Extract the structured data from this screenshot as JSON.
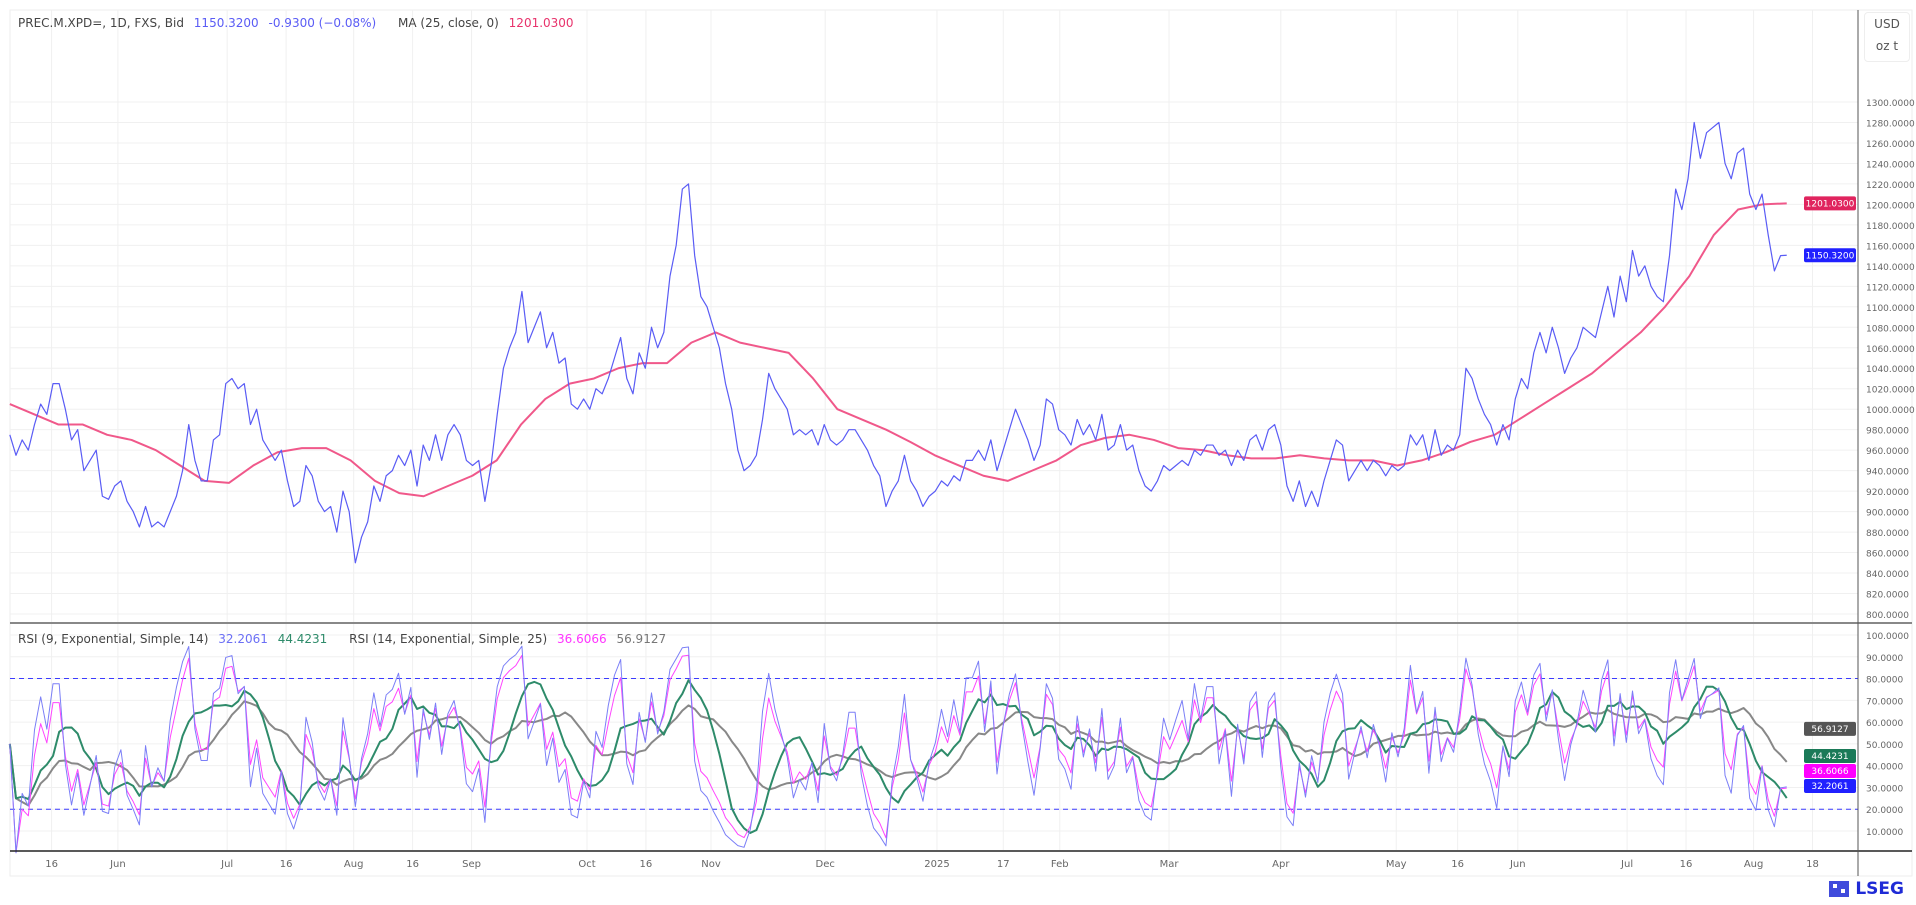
{
  "header": {
    "symbol": "PREC.M.XPD=, 1D, FXS, Bid",
    "last": "1150.3200",
    "change": "-0.9300 (−0.08%)",
    "ma_label": "MA (25, close, 0)",
    "ma_value": "1201.0300"
  },
  "rsi_legend": {
    "rsi1_label": "RSI (9, Exponential, Simple, 14)",
    "rsi1_value": "32.2061",
    "rsi1_ma_value": "44.4231",
    "rsi2_label": "RSI (14, Exponential, Simple, 25)",
    "rsi2_value": "36.6066",
    "rsi2_ma_value": "56.9127"
  },
  "scale": {
    "currency": "USD",
    "unit": "oz t"
  },
  "logo": {
    "text": "LSEG"
  },
  "colors": {
    "price": "#5a5cf5",
    "ma": "#f0588a",
    "rsi1": "#7b7ff7",
    "rsi2": "#ff44ff",
    "rsi1_ma": "#2e8b6a",
    "rsi2_ma": "#888888",
    "band": "#3b3bff"
  },
  "chart_data": [
    {
      "type": "line",
      "title": "PREC.M.XPD=, 1D, FXS, Bid",
      "ylim": [
        790,
        1310
      ],
      "yticks": [
        "800.0000",
        "820.0000",
        "840.0000",
        "860.0000",
        "880.0000",
        "900.0000",
        "920.0000",
        "940.0000",
        "960.0000",
        "980.0000",
        "1000.0000",
        "1020.0000",
        "1040.0000",
        "1060.0000",
        "1080.0000",
        "1100.0000",
        "1120.0000",
        "1140.0000",
        "1160.0000",
        "1180.0000",
        "1200.0000",
        "1220.0000",
        "1240.0000",
        "1260.0000",
        "1280.0000",
        "1300.0000"
      ],
      "xticks": [
        "16",
        "Jun",
        "Jul",
        "16",
        "Aug",
        "16",
        "Sep",
        "Oct",
        "16",
        "Nov",
        "Dec",
        "2025",
        "17",
        "Feb",
        "Mar",
        "Apr",
        "May",
        "16",
        "Jun",
        "Jul",
        "16",
        "Aug",
        "18"
      ],
      "series": [
        {
          "name": "PREC.M.XPD=",
          "values": [
            975,
            955,
            970,
            960,
            985,
            1005,
            995,
            1025,
            1025,
            1000,
            970,
            980,
            940,
            950,
            960,
            915,
            912,
            925,
            930,
            910,
            900,
            885,
            905,
            885,
            890,
            885,
            900,
            915,
            940,
            985,
            950,
            930,
            930,
            970,
            975,
            1025,
            1030,
            1020,
            1025,
            985,
            1000,
            970,
            960,
            950,
            960,
            930,
            905,
            910,
            945,
            935,
            910,
            900,
            905,
            880,
            920,
            900,
            850,
            875,
            890,
            925,
            910,
            935,
            940,
            955,
            945,
            960,
            925,
            965,
            950,
            975,
            950,
            975,
            985,
            975,
            950,
            945,
            950,
            910,
            945,
            995,
            1040,
            1060,
            1075,
            1115,
            1065,
            1080,
            1095,
            1060,
            1075,
            1045,
            1050,
            1005,
            1000,
            1010,
            1000,
            1020,
            1015,
            1030,
            1050,
            1070,
            1030,
            1015,
            1055,
            1040,
            1080,
            1060,
            1075,
            1130,
            1160,
            1215,
            1220,
            1150,
            1110,
            1100,
            1080,
            1060,
            1025,
            1000,
            960,
            940,
            945,
            955,
            990,
            1035,
            1020,
            1010,
            1000,
            975,
            980,
            975,
            980,
            965,
            985,
            970,
            965,
            970,
            980,
            980,
            970,
            960,
            945,
            935,
            905,
            920,
            930,
            955,
            930,
            920,
            905,
            915,
            920,
            930,
            925,
            935,
            930,
            950,
            950,
            960,
            950,
            970,
            940,
            960,
            980,
            1000,
            985,
            970,
            950,
            965,
            1010,
            1005,
            980,
            975,
            965,
            990,
            975,
            985,
            970,
            995,
            960,
            965,
            985,
            960,
            965,
            940,
            925,
            920,
            930,
            945,
            940,
            945,
            950,
            945,
            960,
            955,
            965,
            965,
            955,
            960,
            945,
            960,
            950,
            970,
            975,
            960,
            980,
            985,
            965,
            925,
            910,
            930,
            905,
            920,
            905,
            930,
            950,
            970,
            965,
            930,
            940,
            950,
            940,
            950,
            945,
            935,
            945,
            940,
            945,
            975,
            965,
            975,
            950,
            980,
            955,
            965,
            960,
            975,
            1040,
            1030,
            1010,
            995,
            985,
            965,
            985,
            970,
            1010,
            1030,
            1020,
            1055,
            1075,
            1055,
            1080,
            1060,
            1035,
            1050,
            1060,
            1080,
            1075,
            1070,
            1095,
            1120,
            1090,
            1130,
            1105,
            1155,
            1130,
            1140,
            1120,
            1110,
            1105,
            1150,
            1215,
            1195,
            1225,
            1280,
            1245,
            1270,
            1275,
            1280,
            1240,
            1225,
            1250,
            1255,
            1210,
            1195,
            1210,
            1170,
            1135,
            1150,
            1150.32
          ]
        },
        {
          "name": "MA (25, close, 0)",
          "values": [
            1005,
            995,
            985,
            985,
            975,
            970,
            960,
            945,
            930,
            928,
            945,
            958,
            962,
            962,
            950,
            930,
            918,
            915,
            925,
            935,
            950,
            985,
            1010,
            1025,
            1030,
            1040,
            1045,
            1045,
            1065,
            1075,
            1065,
            1060,
            1055,
            1030,
            1000,
            990,
            980,
            968,
            955,
            945,
            935,
            930,
            940,
            950,
            965,
            972,
            975,
            970,
            962,
            960,
            955,
            952,
            952,
            955,
            952,
            950,
            950,
            945,
            950,
            958,
            968,
            975,
            990,
            1005,
            1020,
            1035,
            1055,
            1075,
            1100,
            1130,
            1170,
            1195,
            1200,
            1201.03
          ]
        }
      ]
    },
    {
      "type": "line",
      "title": "RSI",
      "ylim": [
        0,
        105
      ],
      "yticks": [
        "10.0000",
        "20.0000",
        "30.0000",
        "40.0000",
        "50.0000",
        "60.0000",
        "70.0000",
        "80.0000",
        "90.0000",
        "100.0000"
      ],
      "bands": [
        20,
        80
      ],
      "series": [
        {
          "name": "RSI (9, Exponential, Simple, 14)",
          "last": 32.2061
        },
        {
          "name": "RSI (9) MA",
          "last": 44.4231
        },
        {
          "name": "RSI (14, Exponential, Simple, 25)",
          "last": 36.6066
        },
        {
          "name": "RSI (14) MA",
          "last": 56.9127
        }
      ]
    }
  ]
}
